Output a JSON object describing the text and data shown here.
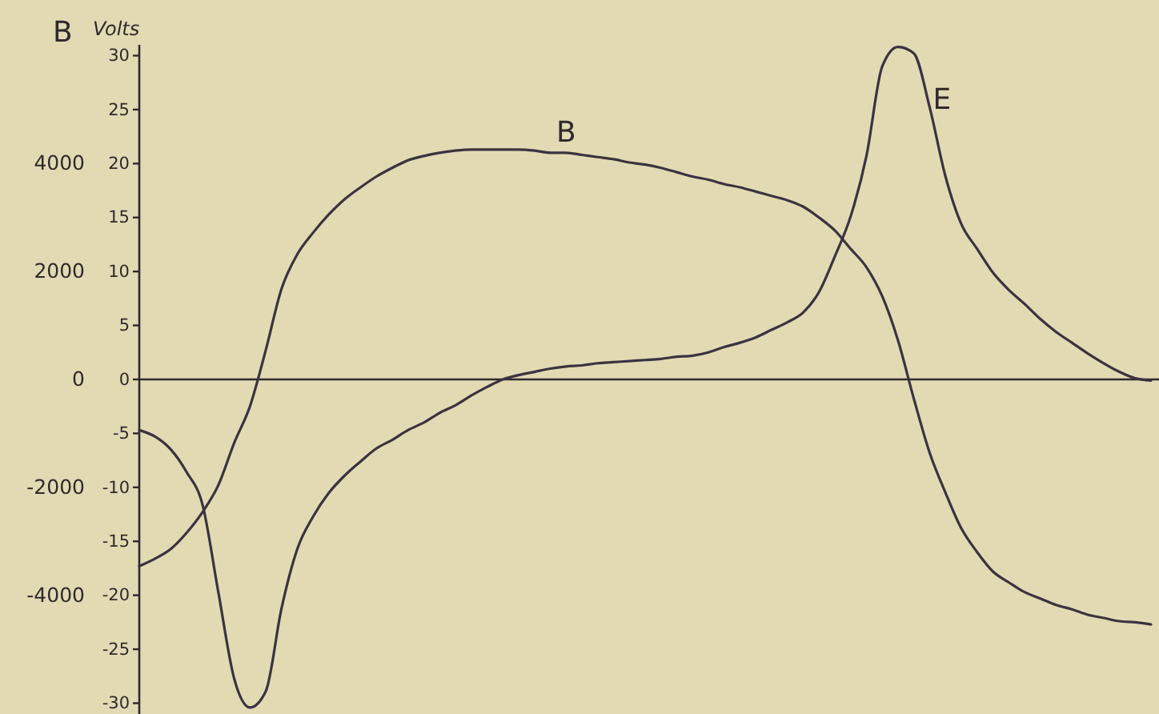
{
  "chart_data": {
    "type": "line",
    "ylabel": "Volts",
    "y2label": "B",
    "categories": [
      null,
      null,
      null,
      null,
      null,
      null,
      null,
      null,
      null,
      null,
      null,
      null,
      null,
      null,
      null,
      null,
      null,
      null,
      null,
      null,
      null,
      null,
      null,
      null,
      null,
      null,
      null,
      null,
      null,
      null,
      null,
      null,
      null,
      null,
      null,
      null,
      null,
      null,
      null,
      null,
      null,
      null,
      null,
      null,
      null,
      null,
      null,
      null,
      null,
      null,
      null,
      null,
      null,
      null,
      null,
      null,
      null,
      null,
      null,
      null,
      null,
      null,
      null,
      null,
      null
    ],
    "ylim": [
      -31,
      31
    ],
    "yticks": [
      -30,
      -25,
      -20,
      -15,
      -10,
      -5,
      0,
      5,
      10,
      15,
      20,
      25,
      30
    ],
    "y2lim": [
      -6200,
      6200
    ],
    "y2ticks": [
      -4000,
      -2000,
      0,
      2000,
      4000
    ],
    "series": [
      {
        "name": "B",
        "axis": "y2",
        "color": "#3a3340",
        "values": [
          -3460,
          -3320,
          -3140,
          -2840,
          -2460,
          -1960,
          -1180,
          -500,
          540,
          1680,
          2320,
          2720,
          3060,
          3340,
          3560,
          3760,
          3920,
          4060,
          4140,
          4200,
          4240,
          4260,
          4260,
          4260,
          4260,
          4240,
          4200,
          4200,
          4160,
          4120,
          4080,
          4020,
          3980,
          3920,
          3840,
          3760,
          3700,
          3620,
          3560,
          3480,
          3400,
          3320,
          3200,
          3000,
          2760,
          2420,
          2080,
          1540,
          720,
          -360,
          -1360,
          -2100,
          -2760,
          -3200,
          -3560,
          -3760,
          -3940,
          -4060,
          -4180,
          -4260,
          -4360,
          -4420,
          -4480,
          -4500,
          -4540
        ]
      },
      {
        "name": "E",
        "color": "#3a3340",
        "values": [
          -4.7,
          -5.3,
          -6.5,
          -8.6,
          -11.6,
          -19.7,
          -27.7,
          -30.4,
          -28.9,
          -21.2,
          -15.7,
          -12.7,
          -10.5,
          -8.9,
          -7.6,
          -6.4,
          -5.6,
          -4.7,
          -4.0,
          -3.1,
          -2.4,
          -1.5,
          -0.7,
          0,
          0.4,
          0.7,
          1.0,
          1.2,
          1.3,
          1.5,
          1.6,
          1.7,
          1.8,
          1.9,
          2.1,
          2.2,
          2.5,
          3.0,
          3.4,
          3.9,
          4.6,
          5.3,
          6.2,
          8.1,
          11.4,
          15.1,
          20.7,
          29.0,
          30.8,
          30.2,
          25.2,
          18.8,
          14.4,
          12.1,
          9.9,
          8.3,
          7.0,
          5.6,
          4.4,
          3.4,
          2.4,
          1.5,
          0.7,
          0.1,
          -0.1
        ]
      }
    ]
  }
}
